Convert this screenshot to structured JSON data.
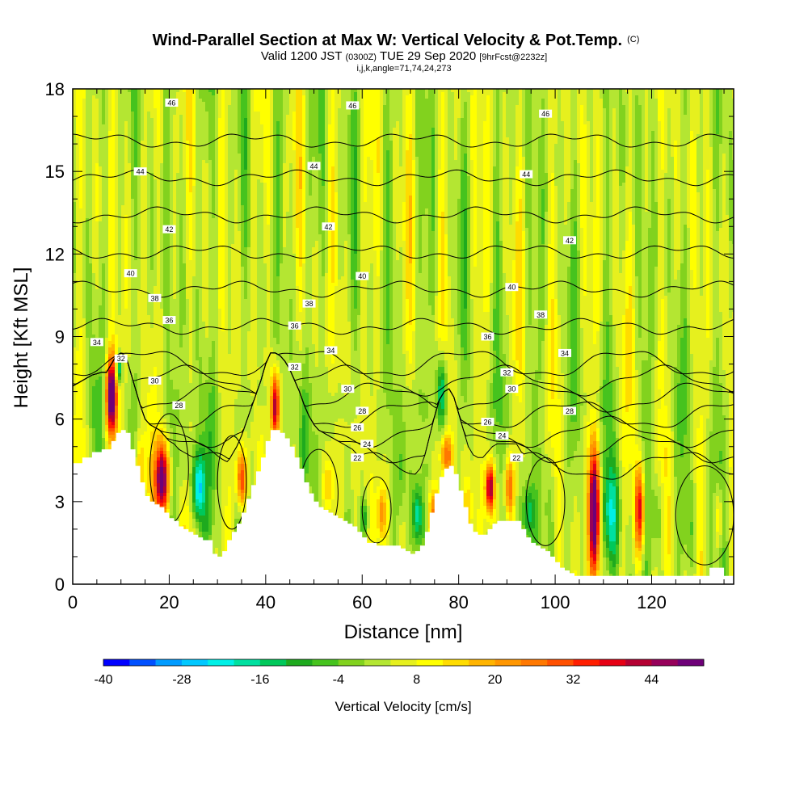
{
  "header": {
    "title_main": "Wind-Parallel Section at Max W: Vertical Velocity & Pot.Temp.",
    "title_mark": "(C)",
    "valid_prefix": "Valid 1200 JST",
    "valid_z": "(0300Z)",
    "valid_date": "TUE 29 Sep 2020",
    "valid_fcst": "[9hrFcst@2232z]",
    "params": "i,j,k,angle=71,74,24,273"
  },
  "chart_data": {
    "type": "heatmap",
    "xlabel": "Distance [nm]",
    "ylabel": "Height [Kft MSL]",
    "xlim": [
      0,
      137
    ],
    "ylim": [
      0,
      18
    ],
    "x_ticks": [
      0,
      20,
      40,
      60,
      80,
      100,
      120
    ],
    "y_ticks": [
      0,
      3,
      6,
      9,
      12,
      15,
      18
    ],
    "colorbar": {
      "label": "Vertical Velocity [cm/s]",
      "min": -40,
      "max": 52,
      "step": 4,
      "tick_labels": [
        "-40",
        "-28",
        "-16",
        "-4",
        "8",
        "20",
        "32",
        "44"
      ],
      "tick_values": [
        -40,
        -28,
        -16,
        -4,
        8,
        20,
        32,
        44
      ],
      "colors": [
        "#0000ff",
        "#0050ff",
        "#009bff",
        "#00c8ff",
        "#00f0e6",
        "#00e0a0",
        "#00c85a",
        "#1eaa1e",
        "#46c31e",
        "#82d21e",
        "#b4e632",
        "#e6f01e",
        "#ffff00",
        "#ffdc00",
        "#ffb400",
        "#ff9600",
        "#ff7800",
        "#ff5000",
        "#ff1e00",
        "#e60014",
        "#b40032",
        "#96005a",
        "#6e0078"
      ]
    },
    "terrain": {
      "x": [
        0,
        2,
        4,
        6,
        7,
        8,
        9,
        10,
        11,
        12,
        13,
        14,
        15,
        16,
        17,
        18,
        19,
        20,
        21,
        22,
        23,
        24,
        25,
        26,
        27,
        28,
        29,
        30,
        31,
        32,
        33,
        34,
        35,
        36,
        37,
        38,
        39,
        40,
        41,
        42,
        43,
        44,
        45,
        46,
        47,
        48,
        49,
        50,
        51,
        52,
        53,
        54,
        55,
        56,
        57,
        58,
        59,
        60,
        61,
        62,
        63,
        64,
        65,
        66,
        67,
        68,
        69,
        70,
        71,
        72,
        73,
        74,
        75,
        76,
        77,
        78,
        79,
        80,
        81,
        82,
        83,
        84,
        85,
        86,
        87,
        88,
        89,
        90,
        91,
        92,
        93,
        94,
        95,
        96,
        97,
        98,
        99,
        100,
        101,
        102,
        103,
        104,
        105,
        106,
        108,
        110,
        112,
        114,
        116,
        118,
        120,
        122,
        124,
        125,
        126,
        127,
        128,
        129,
        130,
        131,
        132,
        133,
        134,
        135,
        136,
        137
      ],
      "y": [
        4.4,
        4.6,
        4.8,
        4.9,
        4.9,
        5.2,
        5.5,
        5.6,
        5.5,
        4.9,
        4.3,
        3.7,
        3.2,
        3.0,
        2.9,
        2.8,
        2.6,
        2.4,
        2.3,
        2.1,
        2.0,
        1.9,
        1.8,
        1.7,
        1.6,
        1.6,
        1.1,
        1.0,
        1.2,
        1.6,
        1.9,
        2.2,
        2.6,
        3.1,
        3.6,
        4.1,
        4.6,
        5.2,
        5.6,
        5.6,
        5.5,
        5.3,
        5.0,
        4.6,
        4.2,
        3.7,
        3.3,
        3.0,
        2.8,
        2.7,
        2.6,
        2.5,
        2.4,
        2.3,
        2.2,
        2.1,
        1.9,
        1.7,
        1.5,
        1.5,
        1.4,
        1.4,
        1.4,
        1.4,
        1.4,
        1.3,
        1.2,
        1.1,
        1.2,
        1.4,
        1.9,
        2.6,
        3.3,
        3.9,
        4.2,
        4.3,
        4.0,
        3.4,
        2.8,
        2.2,
        1.9,
        1.8,
        1.8,
        2.0,
        2.2,
        2.3,
        2.3,
        2.3,
        2.3,
        2.3,
        2.0,
        1.7,
        1.5,
        1.4,
        1.3,
        1.2,
        1.0,
        0.8,
        0.6,
        0.5,
        0.4,
        0.3,
        0.3,
        0.3,
        0.3,
        0.3,
        0.3,
        0.3,
        0.3,
        0.3,
        0.3,
        0.3,
        0.3,
        0.3,
        0.3,
        0.3,
        0.3,
        0.3,
        0.3,
        0.3,
        0.6,
        0.6,
        0.6,
        0.3,
        0.3,
        0.3
      ]
    },
    "theta_contours": {
      "levels": [
        22,
        24,
        26,
        28,
        30,
        32,
        34,
        36,
        38,
        40,
        42,
        44,
        46
      ],
      "labels": [
        {
          "v": 46,
          "x": 20.5,
          "y": 17.5
        },
        {
          "v": 46,
          "x": 58.0,
          "y": 17.4
        },
        {
          "v": 46,
          "x": 98.0,
          "y": 17.1
        },
        {
          "v": 44,
          "x": 14.0,
          "y": 15.0
        },
        {
          "v": 44,
          "x": 50.0,
          "y": 15.2
        },
        {
          "v": 44,
          "x": 94.0,
          "y": 14.9
        },
        {
          "v": 42,
          "x": 20.0,
          "y": 12.9
        },
        {
          "v": 42,
          "x": 53.0,
          "y": 13.0
        },
        {
          "v": 42,
          "x": 103.0,
          "y": 12.5
        },
        {
          "v": 40,
          "x": 12.0,
          "y": 11.3
        },
        {
          "v": 40,
          "x": 60.0,
          "y": 11.2
        },
        {
          "v": 40,
          "x": 91.0,
          "y": 10.8
        },
        {
          "v": 38,
          "x": 17.0,
          "y": 10.4
        },
        {
          "v": 38,
          "x": 49.0,
          "y": 10.2
        },
        {
          "v": 38,
          "x": 97.0,
          "y": 9.8
        },
        {
          "v": 36,
          "x": 20.0,
          "y": 9.6
        },
        {
          "v": 36,
          "x": 46.0,
          "y": 9.4
        },
        {
          "v": 36,
          "x": 86.0,
          "y": 9.0
        },
        {
          "v": 34,
          "x": 5.0,
          "y": 8.8
        },
        {
          "v": 34,
          "x": 53.5,
          "y": 8.5
        },
        {
          "v": 34,
          "x": 102.0,
          "y": 8.4
        },
        {
          "v": 32,
          "x": 10.0,
          "y": 8.2
        },
        {
          "v": 32,
          "x": 46.0,
          "y": 7.9
        },
        {
          "v": 32,
          "x": 90.0,
          "y": 7.7
        },
        {
          "v": 30,
          "x": 17.0,
          "y": 7.4
        },
        {
          "v": 30,
          "x": 57.0,
          "y": 7.1
        },
        {
          "v": 30,
          "x": 91.0,
          "y": 7.1
        },
        {
          "v": 28,
          "x": 22.0,
          "y": 6.5
        },
        {
          "v": 28,
          "x": 60.0,
          "y": 6.3
        },
        {
          "v": 28,
          "x": 103.0,
          "y": 6.3
        },
        {
          "v": 26,
          "x": 59.0,
          "y": 5.7
        },
        {
          "v": 26,
          "x": 86.0,
          "y": 5.9
        },
        {
          "v": 24,
          "x": 61.0,
          "y": 5.1
        },
        {
          "v": 24,
          "x": 89.0,
          "y": 5.4
        },
        {
          "v": 22,
          "x": 59.0,
          "y": 4.6
        },
        {
          "v": 22,
          "x": 92.0,
          "y": 4.6
        }
      ]
    }
  }
}
